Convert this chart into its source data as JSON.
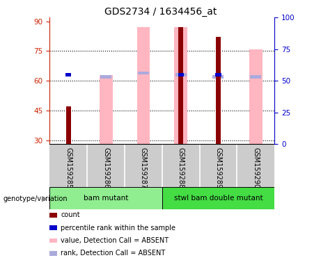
{
  "title": "GDS2734 / 1634456_at",
  "samples": [
    "GSM159285",
    "GSM159286",
    "GSM159287",
    "GSM159288",
    "GSM159289",
    "GSM159290"
  ],
  "count_values": [
    47,
    null,
    null,
    87,
    82,
    null
  ],
  "rank_values_left": [
    63,
    null,
    null,
    63,
    63,
    null
  ],
  "pink_bar_top": [
    null,
    63,
    87,
    87,
    null,
    76
  ],
  "light_blue_top": [
    null,
    62,
    64,
    63,
    62,
    62
  ],
  "ylim_left": [
    28,
    92
  ],
  "ylim_right": [
    0,
    100
  ],
  "yticks_left": [
    30,
    45,
    60,
    75,
    90
  ],
  "yticks_right": [
    0,
    25,
    50,
    75,
    100
  ],
  "color_count": "#8B0000",
  "color_rank": "#0000CC",
  "color_pink": "#FFB6C1",
  "color_lightblue": "#AAAADD",
  "groups": [
    {
      "label": "bam mutant",
      "indices": [
        0,
        1,
        2
      ],
      "color": "#90EE90"
    },
    {
      "label": "stwl bam double mutant",
      "indices": [
        3,
        4,
        5
      ],
      "color": "#44DD44"
    }
  ],
  "axes_left_color": "#CC2200",
  "axes_right_color": "#0000CC",
  "plot_bg": "#ffffff",
  "gray_bg": "#CCCCCC"
}
